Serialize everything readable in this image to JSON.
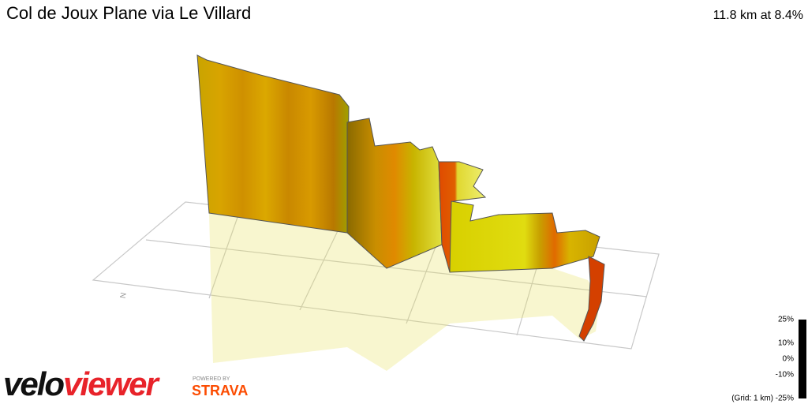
{
  "header": {
    "title": "Col de Joux Plane via Le Villard",
    "stats": "11.8 km at 8.4%"
  },
  "legend": {
    "labels": [
      "25%",
      "10%",
      "0%",
      "-10%",
      "-25%"
    ],
    "grid_note": "(Grid: 1 km)"
  },
  "branding": {
    "logo_part1": "velo",
    "logo_part2": "viewer",
    "powered_by": "POWERED BY",
    "partner": "STRAVA"
  }
}
